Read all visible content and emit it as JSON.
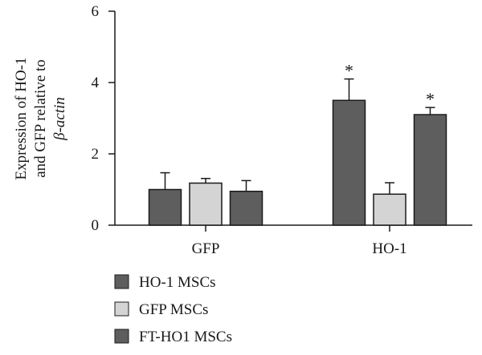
{
  "chart_data": {
    "type": "bar",
    "ylabel_lines": [
      "Expression of HO-1",
      "and GFP relative to",
      "β-actin"
    ],
    "ylim": [
      0,
      6
    ],
    "yticks": [
      "0",
      "2",
      "4",
      "6"
    ],
    "categories": [
      "GFP",
      "HO-1"
    ],
    "series": [
      {
        "name": "HO-1 MSCs",
        "color": "#5e5e5e",
        "values": [
          1.0,
          3.5
        ],
        "errors": [
          0.47,
          0.6
        ],
        "annotations": [
          "",
          "*"
        ]
      },
      {
        "name": "GFP MSCs",
        "color": "#d4d4d4",
        "values": [
          1.18,
          0.87
        ],
        "errors": [
          0.13,
          0.32
        ],
        "annotations": [
          "",
          ""
        ]
      },
      {
        "name": "FT-HO1 MSCs",
        "color": "#5e5e5e",
        "values": [
          0.95,
          3.1
        ],
        "errors": [
          0.3,
          0.2
        ],
        "annotations": [
          "",
          "*"
        ]
      }
    ],
    "grid": false,
    "legend_position": "bottom-left"
  }
}
